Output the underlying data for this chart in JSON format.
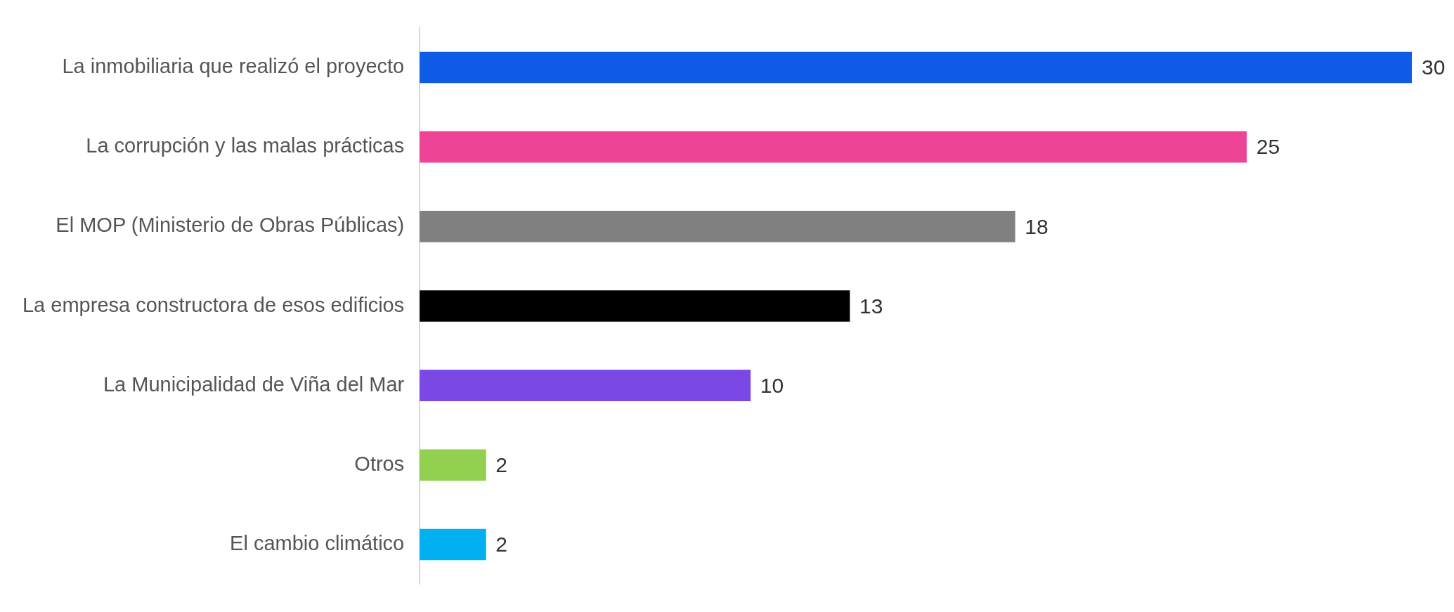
{
  "chart_data": {
    "type": "bar",
    "orientation": "horizontal",
    "categories": [
      "La inmobiliaria que realizó el proyecto",
      "La corrupción y las malas prácticas",
      "El MOP (Ministerio de Obras Públicas)",
      "La empresa constructora de esos edificios",
      "La Municipalidad de Viña del Mar",
      "Otros",
      "El cambio climático"
    ],
    "values": [
      30,
      25,
      18,
      13,
      10,
      2,
      2
    ],
    "colors": [
      "#0f5be5",
      "#ee4497",
      "#808080",
      "#000000",
      "#7b47e5",
      "#92d050",
      "#00b0f0"
    ],
    "xlim": [
      0,
      30
    ],
    "tick_labels": "y",
    "grid": false,
    "legend": false,
    "data_labels": true
  }
}
